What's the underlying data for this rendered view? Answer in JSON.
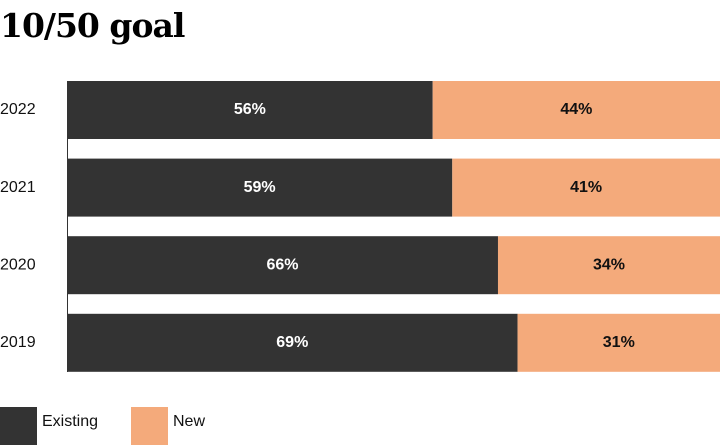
{
  "chart_data": {
    "type": "stacked-bar-horizontal",
    "title": "10/50 goal",
    "categories": [
      "2022",
      "2021",
      "2020",
      "2019"
    ],
    "series": [
      {
        "name": "Existing",
        "color": "#333333",
        "values": [
          56,
          59,
          66,
          69
        ],
        "value_labels": [
          "56%",
          "59%",
          "66%",
          "69%"
        ],
        "label_color": "#ffffff"
      },
      {
        "name": "New",
        "color": "#f4aa7b",
        "values": [
          44,
          41,
          34,
          31
        ],
        "value_labels": [
          "44%",
          "41%",
          "34%",
          "31%"
        ],
        "label_color": "#111111"
      }
    ],
    "xlim": [
      0,
      100
    ]
  }
}
